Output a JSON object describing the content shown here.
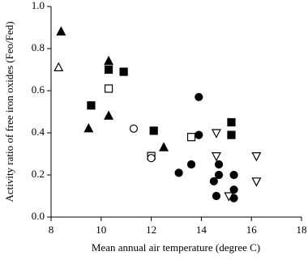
{
  "chart_data": {
    "type": "scatter",
    "xlabel": "Mean annual air temperature (degree C)",
    "ylabel": "Activity ratio of free iron oxides (Feo/Fed)",
    "xlim": [
      8,
      18
    ],
    "xticks": [
      8,
      10,
      12,
      14,
      16,
      18
    ],
    "ylim": [
      0,
      1
    ],
    "yticks": [
      {
        "value": 0,
        "label": "0.0"
      },
      {
        "value": 0.2,
        "label": "0.2"
      },
      {
        "value": 0.4,
        "label": "0.4"
      },
      {
        "value": 0.6,
        "label": "0.6"
      },
      {
        "value": 0.8,
        "label": "0.8"
      },
      {
        "value": 1,
        "label": "1.0"
      }
    ],
    "grid": false,
    "series": [
      {
        "marker": "triangle",
        "color": "#000000",
        "fill": "#000000",
        "x": [
          8.4,
          10.3,
          10.3,
          9.5,
          12.5
        ],
        "values": [
          0.88,
          0.74,
          0.48,
          0.42,
          0.33
        ]
      },
      {
        "marker": "triangle",
        "color": "#000000",
        "fill": "#ffffff",
        "x": [
          8.3
        ],
        "values": [
          0.71
        ]
      },
      {
        "marker": "square",
        "color": "#000000",
        "fill": "#000000",
        "x": [
          10.3,
          10.9,
          9.6,
          12.1,
          15.2,
          15.2
        ],
        "values": [
          0.7,
          0.69,
          0.53,
          0.41,
          0.39,
          0.45
        ]
      },
      {
        "marker": "square",
        "color": "#000000",
        "fill": "#ffffff",
        "x": [
          10.3,
          12.0,
          13.6
        ],
        "values": [
          0.61,
          0.29,
          0.38
        ]
      },
      {
        "marker": "circle",
        "color": "#000000",
        "fill": "#000000",
        "x": [
          13.9,
          13.9,
          13.1,
          13.6,
          14.7,
          14.5,
          14.7,
          15.3,
          14.6,
          15.3,
          15.3
        ],
        "values": [
          0.57,
          0.39,
          0.21,
          0.25,
          0.25,
          0.17,
          0.2,
          0.2,
          0.1,
          0.13,
          0.09
        ]
      },
      {
        "marker": "circle",
        "color": "#000000",
        "fill": "#ffffff",
        "x": [
          11.3,
          12.0
        ],
        "values": [
          0.42,
          0.28
        ]
      },
      {
        "marker": "down-triangle",
        "color": "#000000",
        "fill": "#ffffff",
        "x": [
          14.6,
          14.6,
          16.2,
          16.2,
          15.1
        ],
        "values": [
          0.4,
          0.29,
          0.29,
          0.17,
          0.1
        ]
      }
    ]
  }
}
